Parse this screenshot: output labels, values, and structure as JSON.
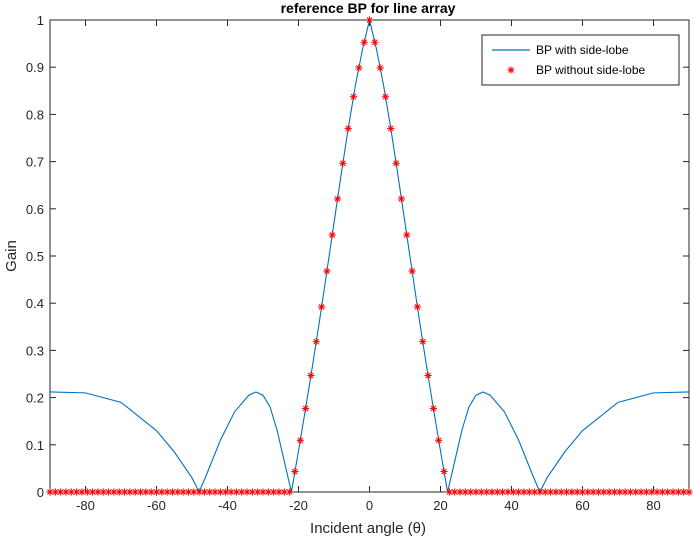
{
  "chart_data": {
    "type": "line",
    "title": "reference BP for line array",
    "xlabel": "Incident angle (θ)",
    "ylabel": "Gain",
    "xlim": [
      -90,
      90
    ],
    "ylim": [
      0,
      1
    ],
    "xticks": [
      -80,
      -60,
      -40,
      -20,
      0,
      20,
      40,
      60,
      80
    ],
    "yticks": [
      0,
      0.1,
      0.2,
      0.3,
      0.4,
      0.5,
      0.6,
      0.7,
      0.8,
      0.9,
      1
    ],
    "grid": false,
    "legend_position": "top-right",
    "series": [
      {
        "name": "BP with side-lobe",
        "style": "line",
        "color": "#0072bd",
        "x": [
          -90,
          -80,
          -70,
          -60,
          -55,
          -50,
          -48,
          -46,
          -42,
          -38,
          -34,
          -32,
          -30,
          -28,
          -26,
          -24,
          -22,
          -20,
          -18,
          -16,
          -14,
          -12,
          -10,
          -8,
          -6,
          -4,
          -2,
          0,
          2,
          4,
          6,
          8,
          10,
          12,
          14,
          16,
          18,
          20,
          22,
          24,
          26,
          28,
          30,
          32,
          34,
          38,
          42,
          46,
          48,
          50,
          55,
          60,
          70,
          80,
          90
        ],
        "values": [
          0.212,
          0.21,
          0.19,
          0.13,
          0.085,
          0.03,
          0.0,
          0.035,
          0.11,
          0.17,
          0.205,
          0.212,
          0.205,
          0.18,
          0.13,
          0.065,
          0.0,
          0.087,
          0.177,
          0.27,
          0.367,
          0.468,
          0.57,
          0.672,
          0.77,
          0.86,
          0.937,
          1.0,
          0.937,
          0.86,
          0.77,
          0.672,
          0.57,
          0.468,
          0.367,
          0.27,
          0.177,
          0.087,
          0.0,
          0.065,
          0.13,
          0.18,
          0.205,
          0.212,
          0.205,
          0.17,
          0.11,
          0.035,
          0.0,
          0.03,
          0.085,
          0.13,
          0.19,
          0.21,
          0.212
        ]
      },
      {
        "name": "BP without side-lobe",
        "style": "markers",
        "marker": "*",
        "color": "#ff0000",
        "x_range": [
          -90,
          90
        ],
        "x_step": 1.5,
        "mainlobe_x": [
          -22,
          -20,
          -18,
          -16,
          -14,
          -12,
          -10,
          -8,
          -6,
          -4,
          -2,
          0,
          2,
          4,
          6,
          8,
          10,
          12,
          14,
          16,
          18,
          20,
          22
        ],
        "mainlobe_values": [
          0.0,
          0.087,
          0.177,
          0.27,
          0.367,
          0.468,
          0.57,
          0.672,
          0.77,
          0.86,
          0.937,
          1.0,
          0.937,
          0.86,
          0.77,
          0.672,
          0.57,
          0.468,
          0.367,
          0.27,
          0.177,
          0.087,
          0.0
        ],
        "sidelobe_value": 0
      }
    ]
  }
}
